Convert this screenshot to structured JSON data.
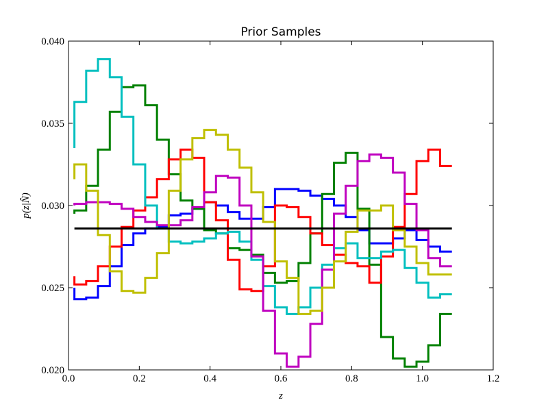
{
  "chart_data": {
    "type": "line",
    "drawstyle": "steps",
    "title": "Prior Samples",
    "x_label": "z",
    "y_label": "p(z|N̂)",
    "x": [
      0.0167,
      0.05,
      0.0833,
      0.1167,
      0.15,
      0.1833,
      0.2167,
      0.25,
      0.2833,
      0.3167,
      0.35,
      0.3833,
      0.4167,
      0.45,
      0.4833,
      0.5167,
      0.55,
      0.5833,
      0.6167,
      0.65,
      0.6833,
      0.7167,
      0.75,
      0.7833,
      0.8167,
      0.85,
      0.8833,
      0.9167,
      0.95,
      0.9833,
      1.0167,
      1.05,
      1.0833
    ],
    "series": [
      {
        "color": "#0000ff",
        "values": [
          0.025,
          0.0243,
          0.0244,
          0.0251,
          0.0263,
          0.0276,
          0.0283,
          0.0286,
          0.0287,
          0.0294,
          0.0295,
          0.0298,
          0.0302,
          0.03,
          0.0296,
          0.0292,
          0.0292,
          0.0299,
          0.031,
          0.031,
          0.0309,
          0.0306,
          0.0304,
          0.03,
          0.0293,
          0.0285,
          0.0277,
          0.0277,
          0.028,
          0.0285,
          0.0279,
          0.0275,
          0.0272
        ]
      },
      {
        "color": "#008000",
        "values": [
          0.0295,
          0.0297,
          0.0312,
          0.0334,
          0.0357,
          0.0372,
          0.0373,
          0.0361,
          0.034,
          0.0319,
          0.0303,
          0.0298,
          0.0285,
          0.0283,
          0.0274,
          0.0273,
          0.027,
          0.0259,
          0.0253,
          0.0254,
          0.0265,
          0.0283,
          0.0307,
          0.0326,
          0.0332,
          0.0298,
          0.0264,
          0.022,
          0.0207,
          0.0202,
          0.0205,
          0.0215,
          0.0234
        ]
      },
      {
        "color": "#ff0000",
        "values": [
          0.0257,
          0.0252,
          0.0254,
          0.0263,
          0.0275,
          0.0287,
          0.0297,
          0.0305,
          0.0316,
          0.0328,
          0.0334,
          0.0329,
          0.0302,
          0.0291,
          0.0267,
          0.0249,
          0.0248,
          0.0263,
          0.03,
          0.0299,
          0.0293,
          0.0283,
          0.0276,
          0.027,
          0.0265,
          0.0263,
          0.0253,
          0.0269,
          0.0287,
          0.0307,
          0.0327,
          0.0334,
          0.0324
        ]
      },
      {
        "color": "#00bfbf",
        "values": [
          0.0335,
          0.0363,
          0.0382,
          0.0389,
          0.0378,
          0.0354,
          0.0325,
          0.03,
          0.0286,
          0.0278,
          0.0277,
          0.0278,
          0.028,
          0.0283,
          0.0284,
          0.0278,
          0.0267,
          0.0251,
          0.0238,
          0.0234,
          0.0238,
          0.025,
          0.0264,
          0.0274,
          0.0277,
          0.0268,
          0.0268,
          0.0272,
          0.0273,
          0.0262,
          0.0253,
          0.0244,
          0.0246
        ]
      },
      {
        "color": "#bf00bf",
        "values": [
          0.03,
          0.0301,
          0.0302,
          0.0302,
          0.0301,
          0.0298,
          0.0293,
          0.029,
          0.0288,
          0.0288,
          0.0291,
          0.0299,
          0.0308,
          0.0318,
          0.0317,
          0.03,
          0.0269,
          0.0236,
          0.021,
          0.0202,
          0.0208,
          0.0228,
          0.0261,
          0.0295,
          0.0312,
          0.0327,
          0.0331,
          0.0329,
          0.032,
          0.0301,
          0.0285,
          0.0268,
          0.0263
        ]
      },
      {
        "color": "#bfbf00",
        "values": [
          0.0316,
          0.0325,
          0.0309,
          0.0282,
          0.026,
          0.0248,
          0.0247,
          0.0256,
          0.0271,
          0.0309,
          0.0328,
          0.0341,
          0.0346,
          0.0343,
          0.0334,
          0.0323,
          0.0308,
          0.029,
          0.0266,
          0.0256,
          0.0234,
          0.0236,
          0.025,
          0.0266,
          0.0284,
          0.0297,
          0.0297,
          0.03,
          0.0285,
          0.0275,
          0.0265,
          0.0258,
          0.0258
        ]
      },
      {
        "color": "#000000",
        "values": [
          0.0286,
          0.0286,
          0.0286,
          0.0286,
          0.0286,
          0.0286,
          0.0286,
          0.0286,
          0.0286,
          0.0286,
          0.0286,
          0.0286,
          0.0286,
          0.0286,
          0.0286,
          0.0286,
          0.0286,
          0.0286,
          0.0286,
          0.0286,
          0.0286,
          0.0286,
          0.0286,
          0.0286,
          0.0286,
          0.0286,
          0.0286,
          0.0286,
          0.0286,
          0.0286,
          0.0286,
          0.0286,
          0.0286
        ]
      }
    ],
    "xlim": [
      0,
      1.2
    ],
    "xticks": [
      {
        "value": 0,
        "label": "0.0"
      },
      0.2,
      0.4,
      0.6,
      0.8,
      {
        "value": 1,
        "label": "1.0"
      },
      1.2
    ],
    "ylim": [
      0.02,
      0.04
    ],
    "yticks": [
      {
        "value": 0.02,
        "label": "0.020"
      },
      {
        "value": 0.025,
        "label": "0.025"
      },
      {
        "value": 0.03,
        "label": "0.030"
      },
      {
        "value": 0.035,
        "label": "0.035"
      },
      {
        "value": 0.04,
        "label": "0.040"
      }
    ],
    "grid": false
  }
}
